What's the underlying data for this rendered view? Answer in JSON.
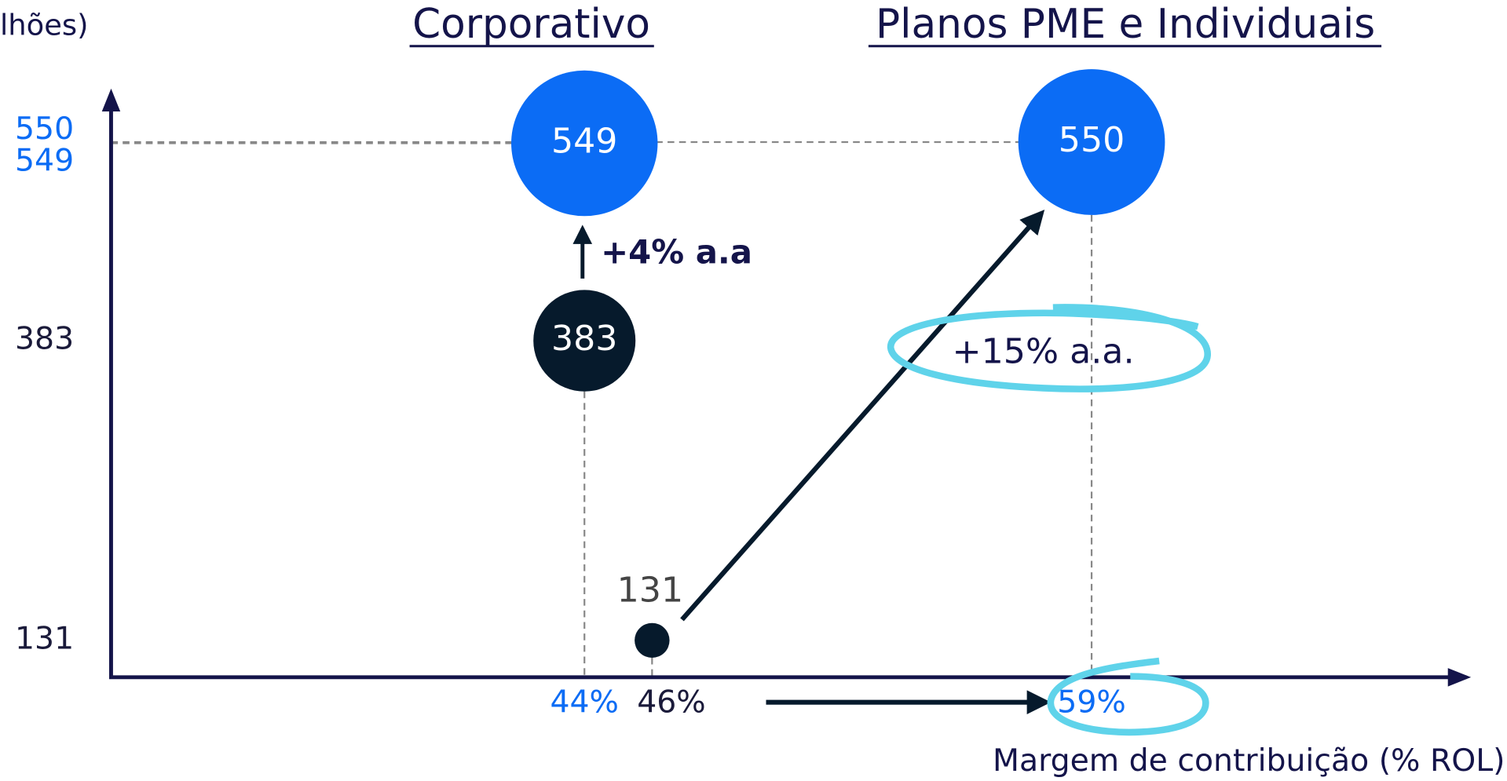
{
  "chart_data": {
    "type": "bubble",
    "ylabel": "lhões)",
    "xlabel": "Margem de contribuição (% ROL)",
    "panel_titles": [
      "Corporativo",
      "Planos PME e Individuais"
    ],
    "annotations": [
      "+4% a.a",
      "+15% a.a."
    ],
    "points": [
      {
        "x": 44,
        "y": 549,
        "color": "#0b6cf5"
      },
      {
        "x": 44,
        "y": 383,
        "color": "#061a2c"
      },
      {
        "x": 46,
        "y": 131,
        "color": "#061a2c"
      },
      {
        "x": 59,
        "y": 550,
        "color": "#0b6cf5"
      }
    ],
    "xlim": [
      30,
      70
    ],
    "ylim": [
      100,
      600
    ],
    "xticks": [
      {
        "value": 44,
        "label": "44%"
      },
      {
        "value": 46,
        "label": "46%"
      },
      {
        "value": 59,
        "label": "59%"
      }
    ],
    "yticks": [
      131,
      383,
      549,
      550
    ],
    "xtick_colors": [
      "#0b6cf5",
      "#1a1a3a",
      "#0b6cf5"
    ],
    "ytick_colors": [
      "#1a1a3a",
      "#1a1a3a",
      "#0b6cf5",
      "#0b6cf5"
    ]
  }
}
